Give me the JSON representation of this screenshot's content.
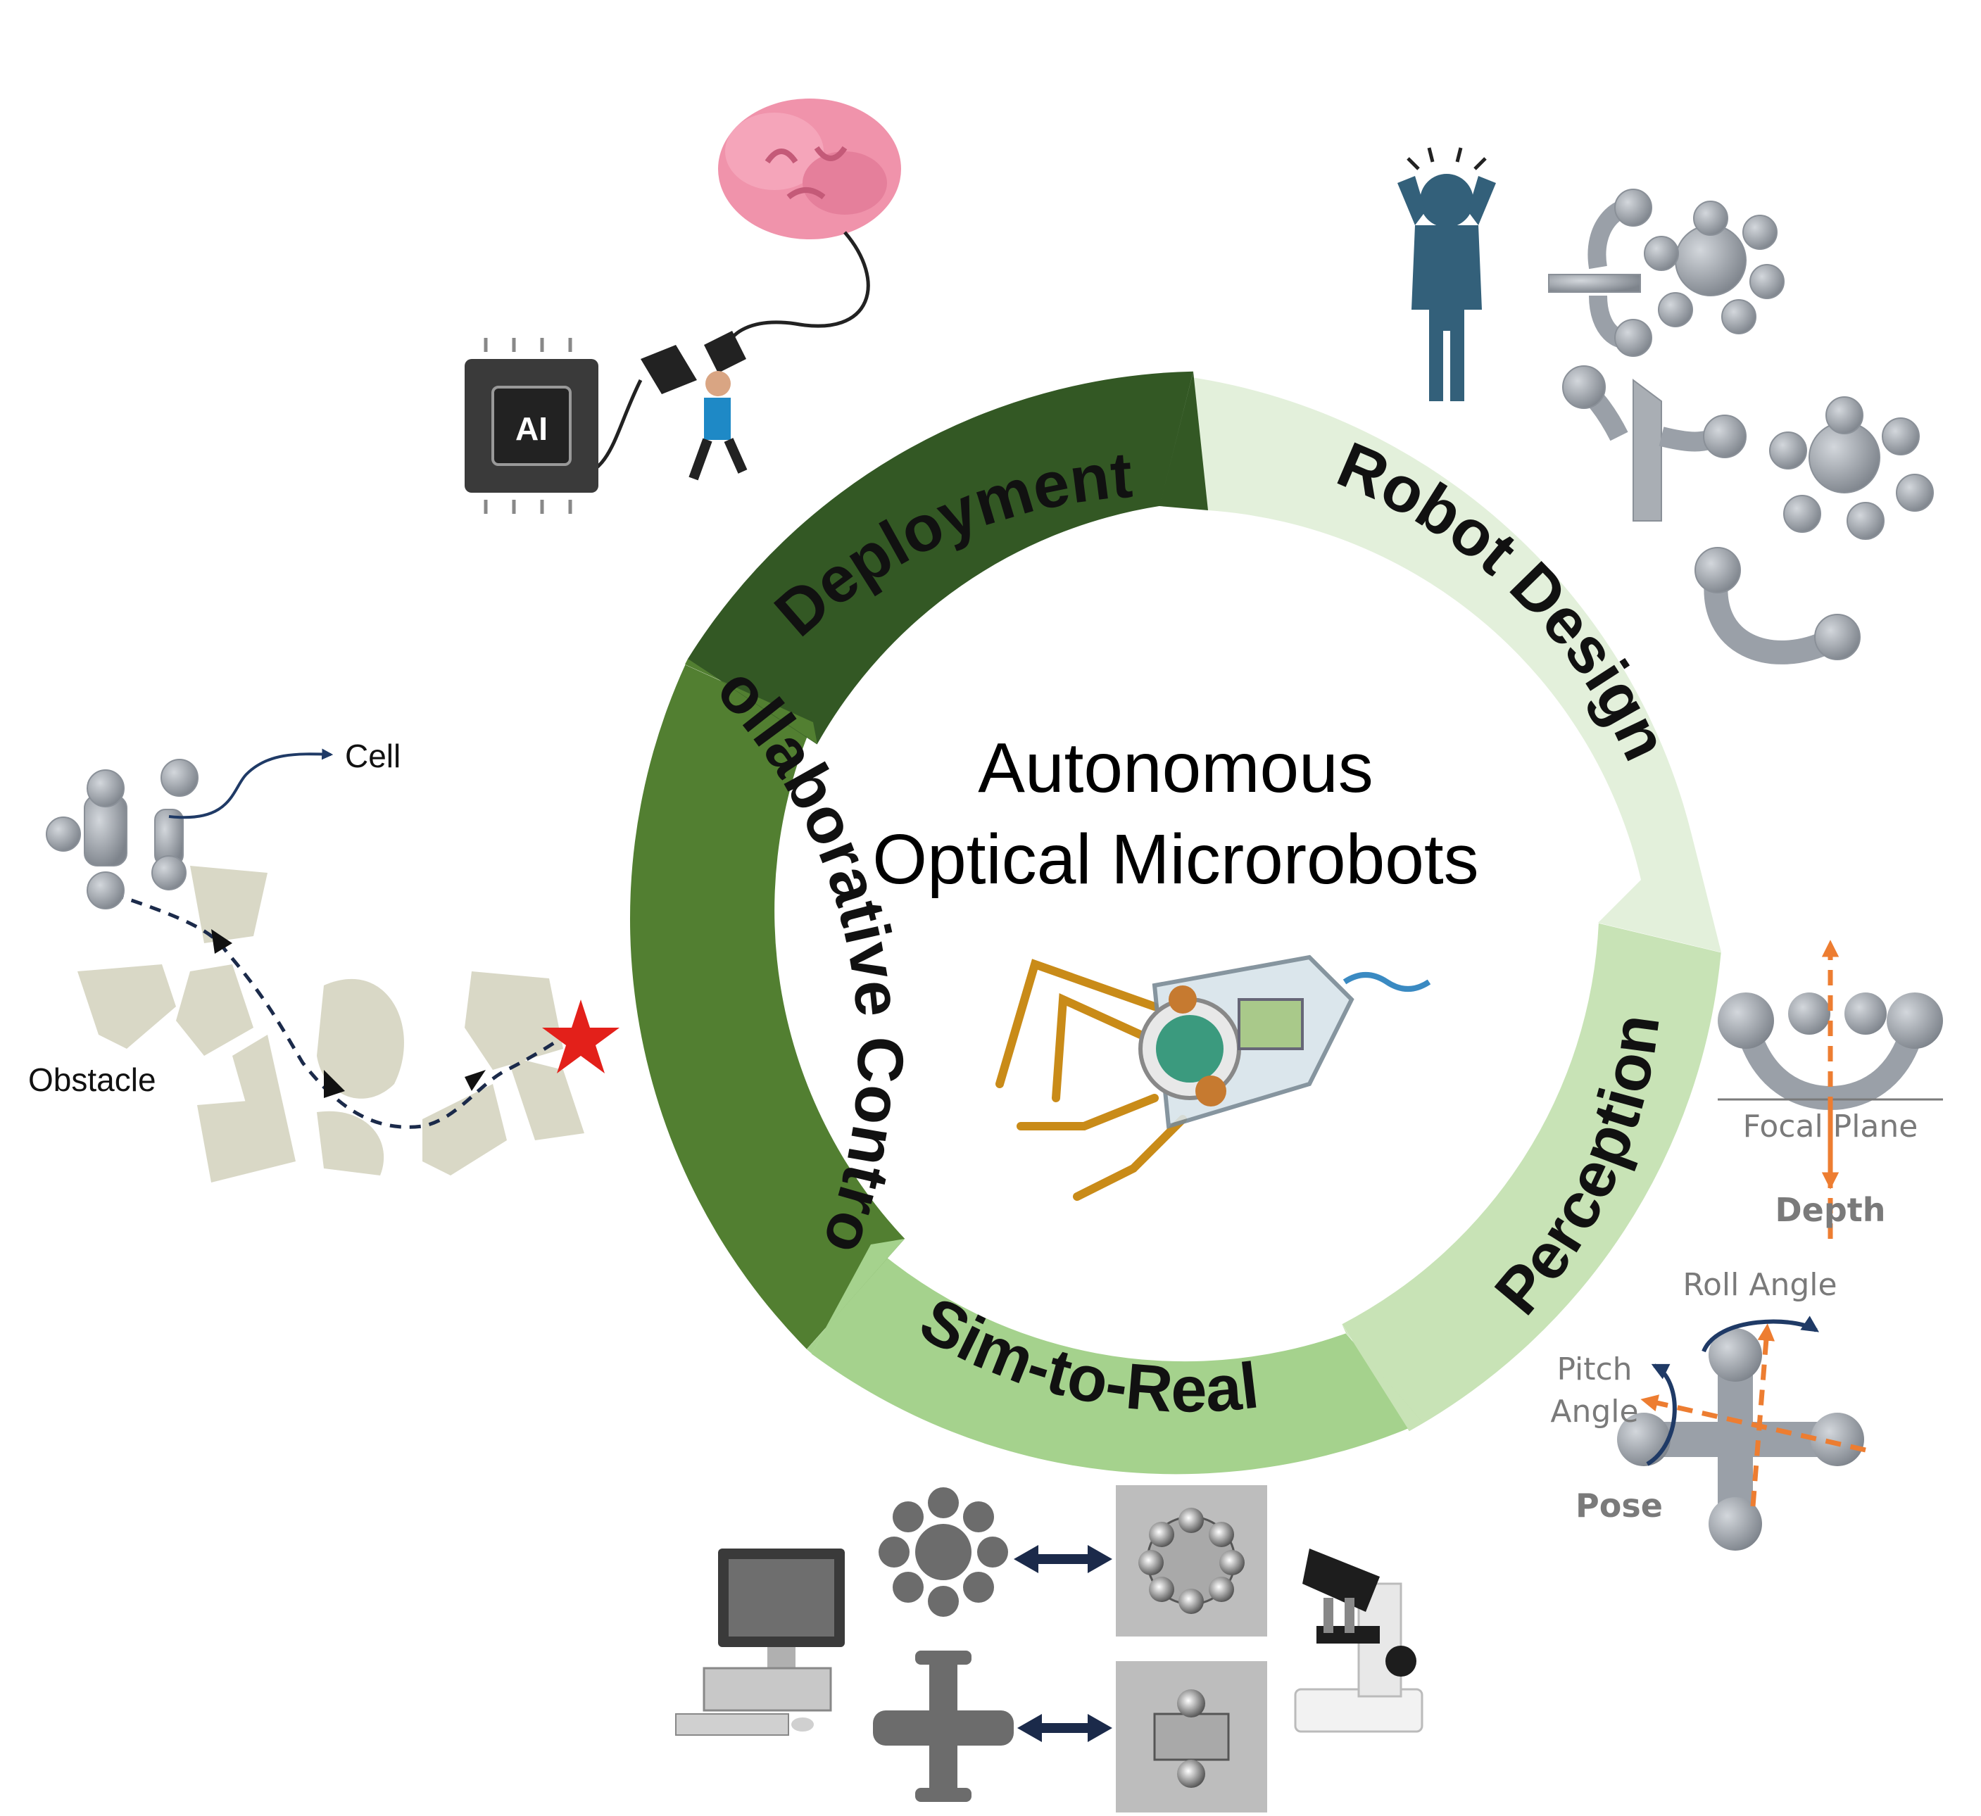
{
  "center": {
    "title_line1": "Autonomous",
    "title_line2": "Optical Microrobots"
  },
  "cycle": {
    "segments": [
      {
        "label": "Robot Design",
        "color": "#e3f0db"
      },
      {
        "label": "Perception",
        "color": "#c8e3b6"
      },
      {
        "label": "Sim-to-Real",
        "color": "#a5d28d"
      },
      {
        "label": "Collaborative Control",
        "color": "#527f31"
      },
      {
        "label": "Deployment",
        "color": "#335824"
      }
    ]
  },
  "panels": {
    "navigation": {
      "cell_label": "Cell",
      "obstacle_label": "Obstacle"
    },
    "perception": {
      "focal_plane_label": "Focal Plane",
      "depth_label": "Depth",
      "roll_label": "Roll Angle",
      "pitch_label_line1": "Pitch",
      "pitch_label_line2": "Angle",
      "pose_label": "Pose"
    },
    "deployment": {
      "chip_label": "AI"
    }
  },
  "colors": {
    "accent_orange": "#ed7d31",
    "arrow_navy": "#1f3a66",
    "robot_grey": "#9aa0a8",
    "person_blue": "#33607a",
    "obstacle": "#d9d8c6",
    "star_red": "#e3201a"
  }
}
